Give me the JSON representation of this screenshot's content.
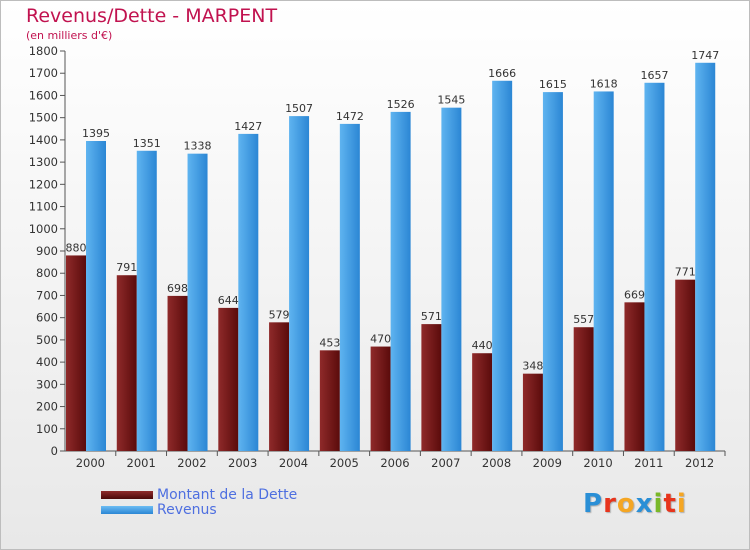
{
  "title": "Revenus/Dette - MARPENT",
  "subtitle": "(en milliers d'€)",
  "brand": {
    "letters": [
      "P",
      "r",
      "o",
      "x",
      "i",
      "t",
      "i"
    ],
    "colors": [
      "#2a8fd6",
      "#e7341c",
      "#f5a623",
      "#2a8fd6",
      "#7ab828",
      "#e7341c",
      "#f5a623"
    ]
  },
  "chart_data": {
    "type": "bar",
    "categories": [
      "2000",
      "2001",
      "2002",
      "2003",
      "2004",
      "2005",
      "2006",
      "2007",
      "2008",
      "2009",
      "2010",
      "2011",
      "2012"
    ],
    "series": [
      {
        "name": "Montant de la Dette",
        "color": "#7a1717",
        "values": [
          880,
          791,
          698,
          644,
          579,
          453,
          470,
          571,
          440,
          348,
          557,
          669,
          771
        ]
      },
      {
        "name": "Revenus",
        "color": "#3d9be6",
        "values": [
          1395,
          1351,
          1338,
          1427,
          1507,
          1472,
          1526,
          1545,
          1666,
          1615,
          1618,
          1657,
          1747
        ]
      }
    ],
    "ylim": [
      0,
      1800
    ],
    "ytick_step": 100,
    "grid": false,
    "legend_position": "bottom-left"
  }
}
